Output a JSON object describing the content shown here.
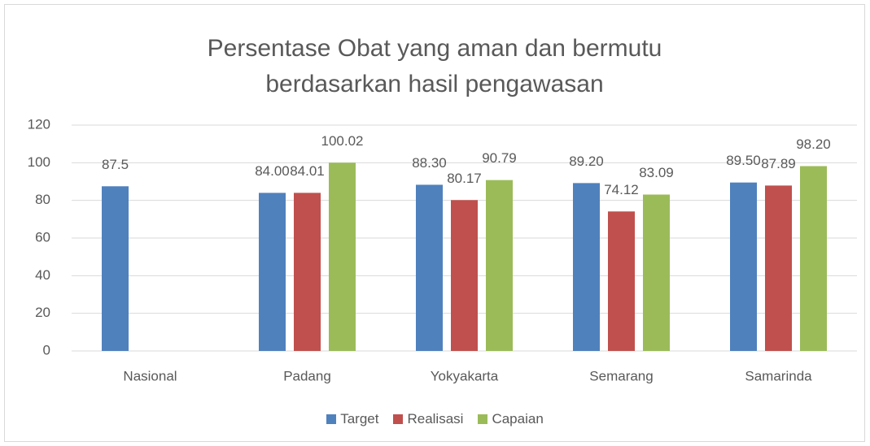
{
  "chart_data": {
    "type": "bar",
    "title": "Persentase Obat yang aman dan bermutu berdasarkan hasil pengawasan",
    "categories": [
      "Nasional",
      "Padang",
      "Yokyakarta",
      "Semarang",
      "Samarinda"
    ],
    "series": [
      {
        "name": "Target",
        "color": "#4f81bd",
        "values": [
          87.5,
          84.0,
          88.3,
          89.2,
          89.5
        ],
        "value_labels": [
          "87.5",
          "84.00",
          "88.30",
          "89.20",
          "89.50"
        ]
      },
      {
        "name": "Realisasi",
        "color": "#c0504d",
        "values": [
          null,
          84.01,
          80.17,
          74.12,
          87.89
        ],
        "value_labels": [
          null,
          "84.01",
          "80.17",
          "74.12",
          "87.89"
        ]
      },
      {
        "name": "Capaian",
        "color": "#9bbb59",
        "values": [
          null,
          100.02,
          90.79,
          83.09,
          98.2
        ],
        "value_labels": [
          null,
          "100.02",
          "90.79",
          "83.09",
          "98.20"
        ]
      }
    ],
    "ylim": [
      0,
      120
    ],
    "yticks": [
      0,
      20,
      40,
      60,
      80,
      100,
      120
    ],
    "grid": true,
    "legend": "bottom"
  }
}
